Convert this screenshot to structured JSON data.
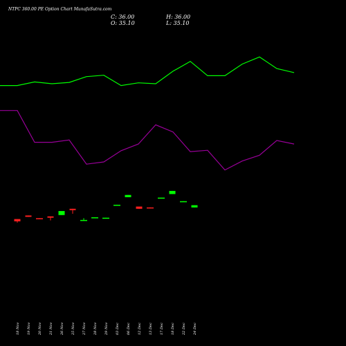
{
  "title": "NTPC 360.00 PE Option  Chart MunafaSutra.com",
  "ohlc": {
    "close": "C: 36.00",
    "high": "H: 36.00",
    "open": "O: 35.10",
    "low": "L: 35.10"
  },
  "colors": {
    "background": "#000000",
    "up": "#00ff00",
    "down": "#ff2020",
    "upper_line": "#00ff00",
    "lower_line": "#990099",
    "text": "#ffffff"
  },
  "chart_data": {
    "type": "candlestick",
    "categories": [
      "18 Nov",
      "19 Nov",
      "20 Nov",
      "21 Nov",
      "26 Nov",
      "25 Nov",
      "27 Nov",
      "28 Nov",
      "29 Nov",
      "03 Dec",
      "06 Dec",
      "12 Dec",
      "13 Dec",
      "17 Dec",
      "18 Dec",
      "22 Dec",
      "24 Dec"
    ],
    "candles": [
      {
        "open": 13.7,
        "close": 13.2,
        "high": 13.7,
        "low": 12.9,
        "dir": "down"
      },
      {
        "open": 14.5,
        "close": 14.2,
        "high": 14.5,
        "low": 14.2,
        "dir": "down"
      },
      {
        "open": 13.9,
        "close": 13.8,
        "high": 13.9,
        "low": 13.8,
        "dir": "down"
      },
      {
        "open": 14.3,
        "close": 14.0,
        "high": 14.3,
        "low": 13.4,
        "dir": "down"
      },
      {
        "open": 14.6,
        "close": 15.5,
        "high": 15.5,
        "low": 14.6,
        "dir": "up"
      },
      {
        "open": 16.0,
        "close": 15.7,
        "high": 16.0,
        "low": 14.9,
        "dir": "down"
      },
      {
        "open": 13.4,
        "close": 13.5,
        "high": 13.9,
        "low": 13.4,
        "dir": "up"
      },
      {
        "open": 14.0,
        "close": 14.1,
        "high": 14.1,
        "low": 14.0,
        "dir": "up"
      },
      {
        "open": 13.9,
        "close": 14.0,
        "high": 14.0,
        "low": 13.9,
        "dir": "up"
      },
      {
        "open": 16.8,
        "close": 16.9,
        "high": 16.9,
        "low": 16.8,
        "dir": "up"
      },
      {
        "open": 18.6,
        "close": 19.1,
        "high": 19.1,
        "low": 18.6,
        "dir": "up"
      },
      {
        "open": 16.5,
        "close": 16.0,
        "high": 16.5,
        "low": 16.0,
        "dir": "down"
      },
      {
        "open": 16.3,
        "close": 16.1,
        "high": 16.3,
        "low": 16.1,
        "dir": "down"
      },
      {
        "open": 18.4,
        "close": 18.5,
        "high": 18.5,
        "low": 18.4,
        "dir": "up"
      },
      {
        "open": 19.3,
        "close": 20.0,
        "high": 20.0,
        "low": 19.3,
        "dir": "up"
      },
      {
        "open": 17.5,
        "close": 17.7,
        "high": 17.7,
        "low": 17.5,
        "dir": "up"
      },
      {
        "open": 16.3,
        "close": 16.8,
        "high": 16.8,
        "low": 16.3,
        "dir": "up"
      }
    ],
    "upper_line": {
      "color": "#00ff00",
      "x": [
        0,
        1,
        2,
        3,
        4,
        5,
        6,
        7,
        8,
        9,
        10,
        11,
        12,
        13,
        14,
        15,
        16,
        17
      ],
      "values": [
        43.6,
        43.6,
        44.4,
        44.0,
        44.3,
        45.6,
        45.9,
        43.6,
        44.2,
        44.0,
        46.8,
        49.0,
        45.8,
        45.8,
        48.4,
        50.0,
        47.4,
        46.5
      ]
    },
    "lower_line": {
      "color": "#990099",
      "x": [
        0,
        1,
        2,
        3,
        4,
        5,
        6,
        7,
        8,
        9,
        10,
        11,
        12,
        13,
        14,
        15,
        16,
        17
      ],
      "values": [
        38.0,
        38.0,
        30.9,
        30.9,
        31.4,
        26.0,
        26.5,
        29.0,
        30.5,
        34.8,
        33.2,
        28.8,
        29.1,
        24.7,
        26.7,
        28.0,
        31.3,
        30.5
      ]
    },
    "ylim": [
      0,
      55
    ]
  }
}
